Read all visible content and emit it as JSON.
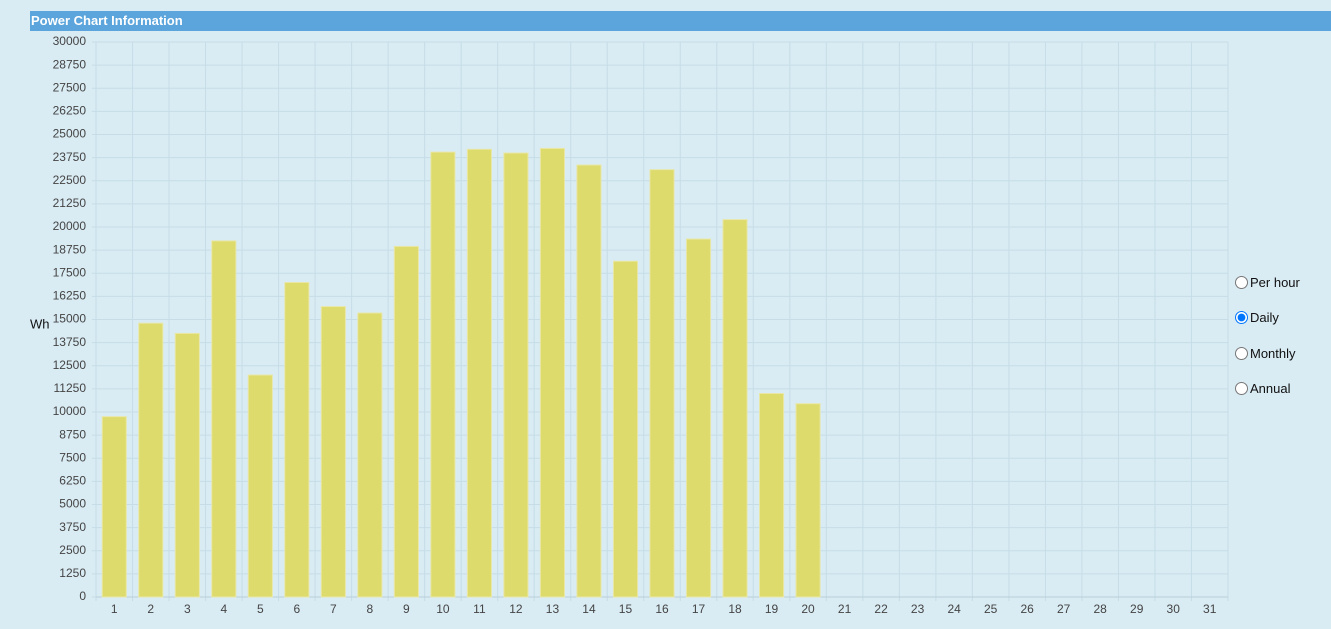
{
  "header": {
    "title": "Power Chart Information"
  },
  "chart_data": {
    "type": "bar",
    "ylabel": "Wh",
    "categories": [
      "1",
      "2",
      "3",
      "4",
      "5",
      "6",
      "7",
      "8",
      "9",
      "10",
      "11",
      "12",
      "13",
      "14",
      "15",
      "16",
      "17",
      "18",
      "19",
      "20",
      "21",
      "22",
      "23",
      "24",
      "25",
      "26",
      "27",
      "28",
      "29",
      "30",
      "31"
    ],
    "values": [
      9750,
      14800,
      14250,
      19250,
      12000,
      17000,
      15700,
      15350,
      18950,
      24050,
      24200,
      24000,
      24250,
      23350,
      18150,
      23100,
      19350,
      20400,
      11000,
      10450,
      null,
      null,
      null,
      null,
      null,
      null,
      null,
      null,
      null,
      null,
      null
    ],
    "color": "#dddb6b",
    "ylim": [
      0,
      30000
    ],
    "yticks": [
      0,
      1250,
      2500,
      3750,
      5000,
      6250,
      7500,
      8750,
      10000,
      11250,
      12500,
      13750,
      15000,
      16250,
      17500,
      18750,
      20000,
      21250,
      22500,
      23750,
      25000,
      26250,
      27500,
      28750,
      30000
    ],
    "grid": true
  },
  "radios": [
    {
      "label": "Per hour",
      "checked": false
    },
    {
      "label": "Daily",
      "checked": true
    },
    {
      "label": "Monthly",
      "checked": false
    },
    {
      "label": "Annual",
      "checked": false
    }
  ]
}
